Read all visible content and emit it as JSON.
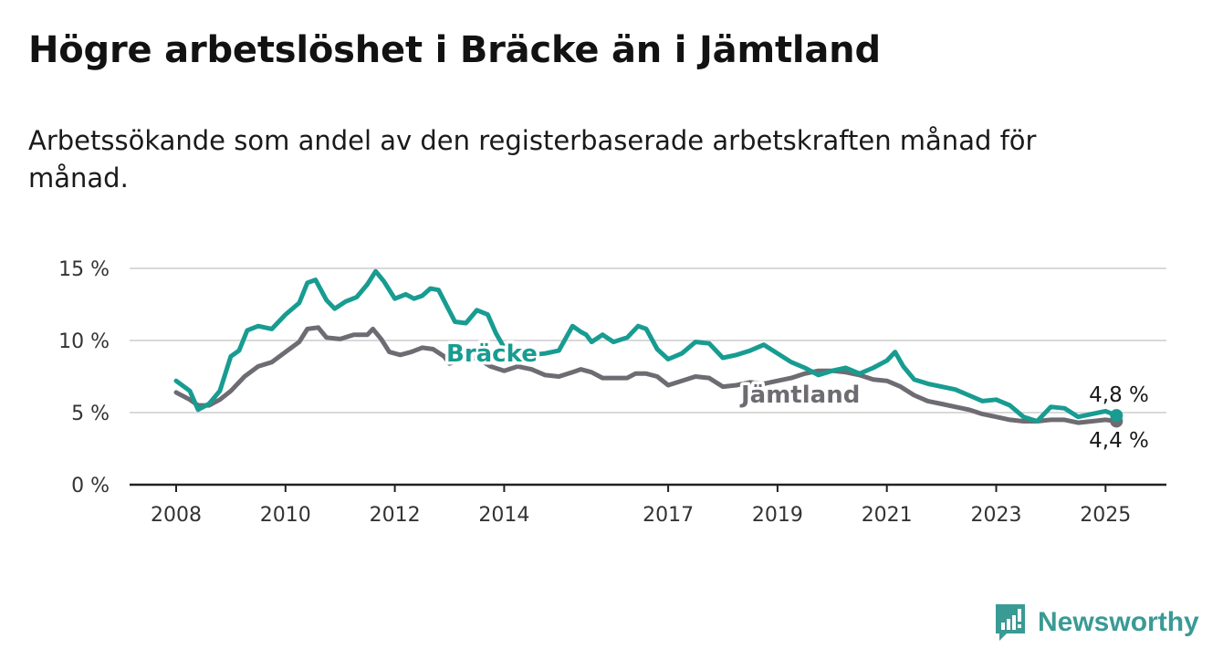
{
  "header": {
    "title": "Högre arbetslöshet i Bräcke än i Jämtland",
    "subtitle": "Arbetssökande som andel av den registerbaserade arbetskraften månad för månad."
  },
  "brand": {
    "name": "Newsworthy",
    "icon": "newsworthy-logo-icon",
    "color": "#3a9a94"
  },
  "chart_data": {
    "type": "line",
    "x_ticks": [
      "2008",
      "2010",
      "2012",
      "2014",
      "2017",
      "2019",
      "2021",
      "2023",
      "2025"
    ],
    "y_ticks": [
      "0 %",
      "5 %",
      "10 %",
      "15 %"
    ],
    "ylim": [
      0,
      15
    ],
    "xlim": [
      2007.25,
      2026.1
    ],
    "grid": "horizontal",
    "series": [
      {
        "name": "Jämtland",
        "color": "#6e6c72",
        "end_label": "4,4 %",
        "points": [
          [
            2008.0,
            6.4
          ],
          [
            2008.25,
            5.9
          ],
          [
            2008.4,
            5.5
          ],
          [
            2008.6,
            5.5
          ],
          [
            2008.8,
            5.9
          ],
          [
            2009.0,
            6.5
          ],
          [
            2009.25,
            7.5
          ],
          [
            2009.5,
            8.2
          ],
          [
            2009.75,
            8.5
          ],
          [
            2010.0,
            9.2
          ],
          [
            2010.25,
            9.9
          ],
          [
            2010.4,
            10.8
          ],
          [
            2010.6,
            10.9
          ],
          [
            2010.75,
            10.2
          ],
          [
            2011.0,
            10.1
          ],
          [
            2011.25,
            10.4
          ],
          [
            2011.5,
            10.4
          ],
          [
            2011.6,
            10.8
          ],
          [
            2011.75,
            10.1
          ],
          [
            2011.9,
            9.2
          ],
          [
            2012.1,
            9.0
          ],
          [
            2012.3,
            9.2
          ],
          [
            2012.5,
            9.5
          ],
          [
            2012.7,
            9.4
          ],
          [
            2012.9,
            8.9
          ],
          [
            2013.0,
            8.4
          ],
          [
            2013.25,
            8.7
          ],
          [
            2013.5,
            8.8
          ],
          [
            2013.75,
            8.2
          ],
          [
            2014.0,
            7.9
          ],
          [
            2014.25,
            8.2
          ],
          [
            2014.5,
            8.0
          ],
          [
            2014.75,
            7.6
          ],
          [
            2015.0,
            7.5
          ],
          [
            2015.25,
            7.8
          ],
          [
            2015.4,
            8.0
          ],
          [
            2015.6,
            7.8
          ],
          [
            2015.8,
            7.4
          ],
          [
            2016.0,
            7.4
          ],
          [
            2016.25,
            7.4
          ],
          [
            2016.4,
            7.7
          ],
          [
            2016.6,
            7.7
          ],
          [
            2016.8,
            7.5
          ],
          [
            2017.0,
            6.9
          ],
          [
            2017.25,
            7.2
          ],
          [
            2017.5,
            7.5
          ],
          [
            2017.75,
            7.4
          ],
          [
            2018.0,
            6.8
          ],
          [
            2018.25,
            6.9
          ],
          [
            2018.5,
            7.1
          ],
          [
            2018.75,
            7.0
          ],
          [
            2019.0,
            7.2
          ],
          [
            2019.25,
            7.4
          ],
          [
            2019.5,
            7.7
          ],
          [
            2019.75,
            7.9
          ],
          [
            2020.0,
            7.9
          ],
          [
            2020.25,
            7.8
          ],
          [
            2020.5,
            7.6
          ],
          [
            2020.75,
            7.3
          ],
          [
            2021.0,
            7.2
          ],
          [
            2021.25,
            6.8
          ],
          [
            2021.5,
            6.2
          ],
          [
            2021.75,
            5.8
          ],
          [
            2022.0,
            5.6
          ],
          [
            2022.25,
            5.4
          ],
          [
            2022.5,
            5.2
          ],
          [
            2022.75,
            4.9
          ],
          [
            2023.0,
            4.7
          ],
          [
            2023.25,
            4.5
          ],
          [
            2023.5,
            4.4
          ],
          [
            2023.75,
            4.4
          ],
          [
            2024.0,
            4.5
          ],
          [
            2024.25,
            4.5
          ],
          [
            2024.5,
            4.3
          ],
          [
            2024.75,
            4.4
          ],
          [
            2025.0,
            4.5
          ],
          [
            2025.2,
            4.4
          ]
        ]
      },
      {
        "name": "Bräcke",
        "color": "#189c91",
        "end_label": "4,8 %",
        "points": [
          [
            2008.0,
            7.2
          ],
          [
            2008.25,
            6.5
          ],
          [
            2008.4,
            5.2
          ],
          [
            2008.6,
            5.6
          ],
          [
            2008.8,
            6.5
          ],
          [
            2009.0,
            8.9
          ],
          [
            2009.15,
            9.3
          ],
          [
            2009.3,
            10.7
          ],
          [
            2009.5,
            11.0
          ],
          [
            2009.75,
            10.8
          ],
          [
            2010.0,
            11.8
          ],
          [
            2010.25,
            12.6
          ],
          [
            2010.4,
            14.0
          ],
          [
            2010.55,
            14.2
          ],
          [
            2010.75,
            12.8
          ],
          [
            2010.9,
            12.2
          ],
          [
            2011.1,
            12.7
          ],
          [
            2011.3,
            13.0
          ],
          [
            2011.5,
            13.9
          ],
          [
            2011.65,
            14.8
          ],
          [
            2011.8,
            14.1
          ],
          [
            2012.0,
            12.9
          ],
          [
            2012.2,
            13.2
          ],
          [
            2012.35,
            12.9
          ],
          [
            2012.5,
            13.1
          ],
          [
            2012.65,
            13.6
          ],
          [
            2012.8,
            13.5
          ],
          [
            2012.95,
            12.4
          ],
          [
            2013.1,
            11.3
          ],
          [
            2013.3,
            11.2
          ],
          [
            2013.5,
            12.1
          ],
          [
            2013.7,
            11.8
          ],
          [
            2013.85,
            10.5
          ],
          [
            2014.0,
            9.5
          ],
          [
            2014.2,
            9.2
          ],
          [
            2014.5,
            9.0
          ],
          [
            2014.75,
            9.1
          ],
          [
            2015.0,
            9.3
          ],
          [
            2015.25,
            11.0
          ],
          [
            2015.4,
            10.6
          ],
          [
            2015.5,
            10.4
          ],
          [
            2015.6,
            9.9
          ],
          [
            2015.8,
            10.4
          ],
          [
            2016.0,
            9.9
          ],
          [
            2016.25,
            10.2
          ],
          [
            2016.45,
            11.0
          ],
          [
            2016.6,
            10.8
          ],
          [
            2016.8,
            9.4
          ],
          [
            2017.0,
            8.7
          ],
          [
            2017.25,
            9.1
          ],
          [
            2017.5,
            9.9
          ],
          [
            2017.75,
            9.8
          ],
          [
            2018.0,
            8.8
          ],
          [
            2018.25,
            9.0
          ],
          [
            2018.5,
            9.3
          ],
          [
            2018.75,
            9.7
          ],
          [
            2019.0,
            9.1
          ],
          [
            2019.25,
            8.5
          ],
          [
            2019.5,
            8.1
          ],
          [
            2019.75,
            7.6
          ],
          [
            2020.0,
            7.9
          ],
          [
            2020.25,
            8.1
          ],
          [
            2020.5,
            7.7
          ],
          [
            2020.75,
            8.1
          ],
          [
            2021.0,
            8.6
          ],
          [
            2021.15,
            9.2
          ],
          [
            2021.3,
            8.2
          ],
          [
            2021.5,
            7.3
          ],
          [
            2021.75,
            7.0
          ],
          [
            2022.0,
            6.8
          ],
          [
            2022.25,
            6.6
          ],
          [
            2022.5,
            6.2
          ],
          [
            2022.75,
            5.8
          ],
          [
            2023.0,
            5.9
          ],
          [
            2023.25,
            5.5
          ],
          [
            2023.5,
            4.7
          ],
          [
            2023.75,
            4.4
          ],
          [
            2024.0,
            5.4
          ],
          [
            2024.25,
            5.3
          ],
          [
            2024.5,
            4.7
          ],
          [
            2024.75,
            4.9
          ],
          [
            2025.0,
            5.1
          ],
          [
            2025.2,
            4.8
          ]
        ]
      }
    ]
  }
}
